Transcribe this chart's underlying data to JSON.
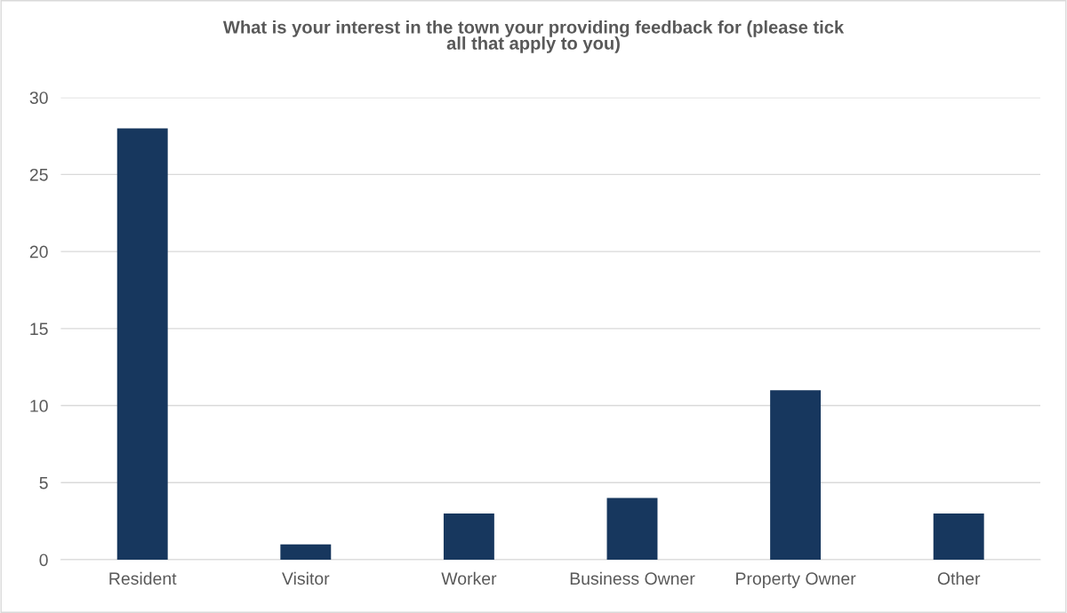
{
  "chart_data": {
    "type": "bar",
    "title": "What is your interest in the town your providing feedback for (please tick\nall that apply to you)",
    "categories": [
      "Resident",
      "Visitor",
      "Worker",
      "Business Owner",
      "Property Owner",
      "Other"
    ],
    "values": [
      28,
      1,
      3,
      4,
      11,
      3
    ],
    "color": "#17375e",
    "ylim": [
      0,
      30
    ],
    "yticks": [
      0,
      5,
      10,
      15,
      20,
      25,
      30
    ],
    "grid": "y"
  }
}
